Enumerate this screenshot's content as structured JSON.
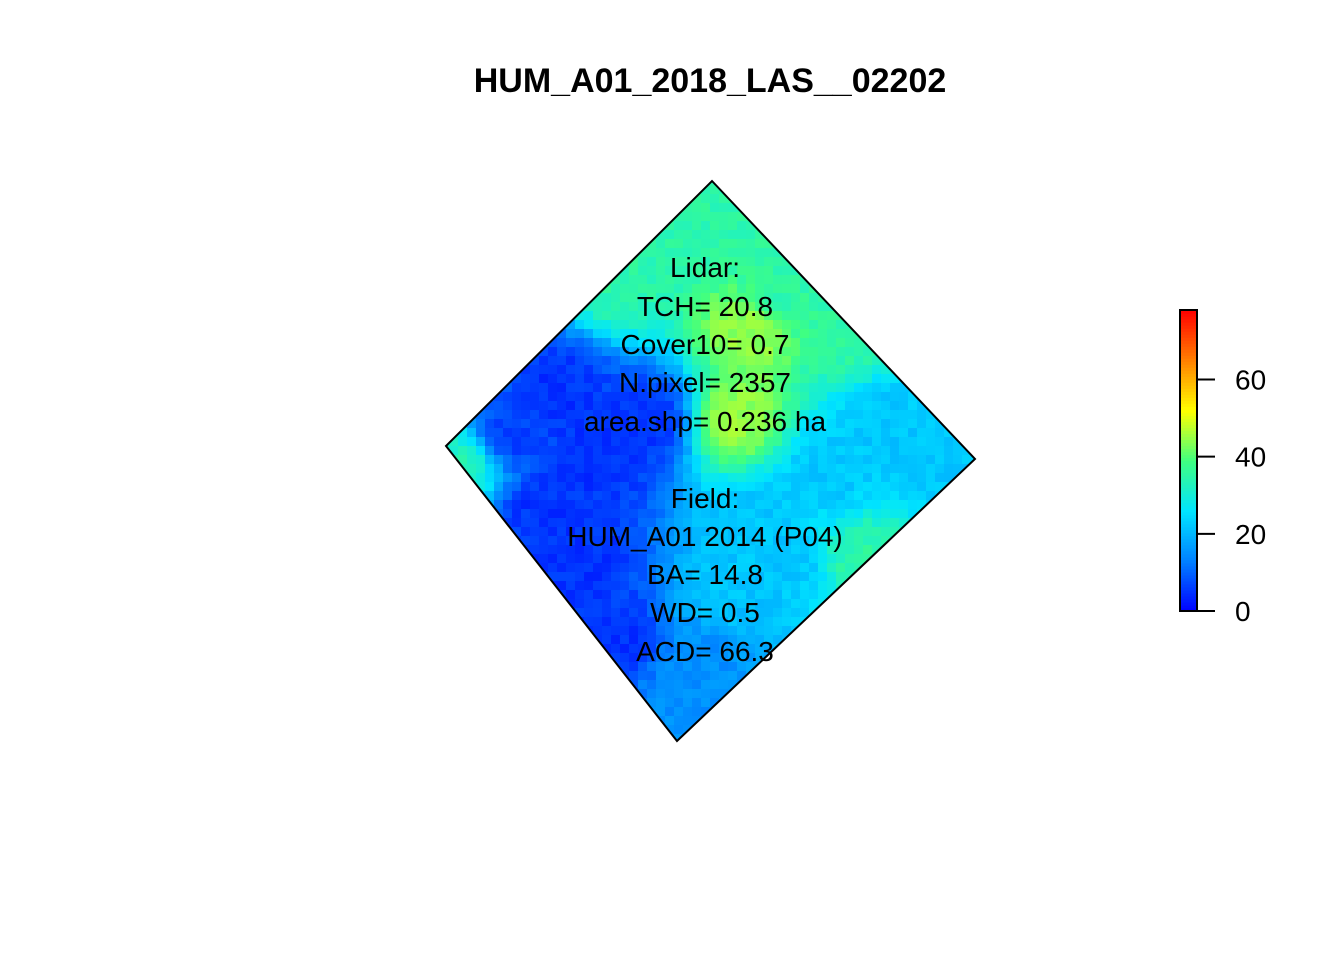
{
  "chart_data": {
    "type": "heatmap",
    "title": "HUM_A01_2018_LAS__02202",
    "xlabel": "",
    "ylabel": "",
    "colorbar": {
      "min": 0,
      "max": 78,
      "ticks": [
        0,
        20,
        40,
        60
      ],
      "tick_labels": [
        "0",
        "20",
        "40",
        "60"
      ],
      "colors": [
        "#0000ff",
        "#0080ff",
        "#00e5ff",
        "#40ff80",
        "#ffff00",
        "#ff8000",
        "#ff0000"
      ]
    },
    "raster_regions": [
      {
        "region": "top",
        "value": 35
      },
      {
        "region": "upper-center",
        "value": 45
      },
      {
        "region": "left",
        "value": 5
      },
      {
        "region": "right",
        "value": 22
      },
      {
        "region": "lower-left",
        "value": 5
      },
      {
        "region": "lower-center",
        "value": 22
      },
      {
        "region": "bottom",
        "value": 15
      }
    ],
    "annotations": {
      "lidar": [
        "Lidar:",
        "TCH= 20.8",
        "Cover10= 0.7",
        "N.pixel= 2357",
        "area.shp= 0.236 ha"
      ],
      "field": [
        "Field:",
        "HUM_A01 2014 (P04)",
        "BA= 14.8",
        "WD= 0.5",
        "ACD= 66.3"
      ]
    }
  }
}
